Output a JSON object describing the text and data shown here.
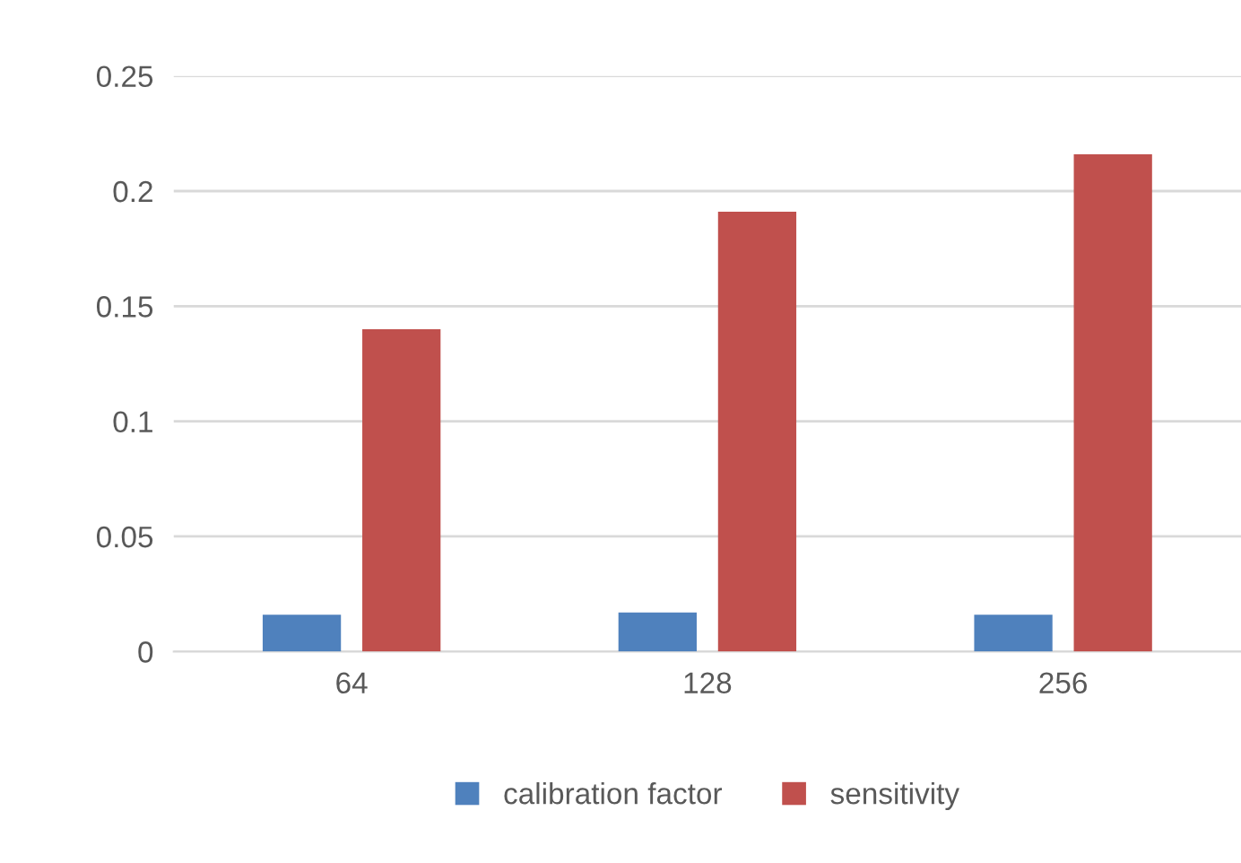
{
  "chart_data": {
    "type": "bar",
    "categories": [
      "64",
      "128",
      "256"
    ],
    "series": [
      {
        "name": "calibration factor",
        "color": "#4f81bd",
        "values": [
          0.016,
          0.017,
          0.016
        ]
      },
      {
        "name": "sensitivity",
        "color": "#c0504d",
        "values": [
          0.14,
          0.191,
          0.216
        ]
      }
    ],
    "ylim": [
      0,
      0.25
    ],
    "yticks": [
      0,
      0.05,
      0.1,
      0.15,
      0.2,
      0.25
    ],
    "grid": "y",
    "legend": "bottom"
  }
}
